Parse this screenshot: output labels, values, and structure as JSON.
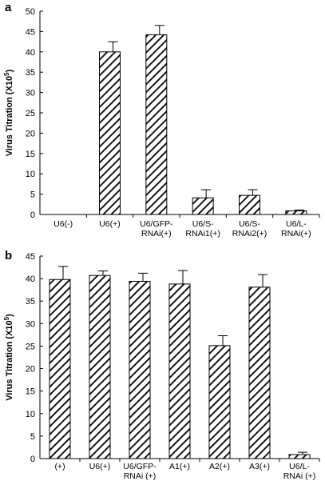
{
  "chart_data": [
    {
      "panel": "a",
      "type": "bar",
      "categories": [
        "U6(-)",
        "U6(+)",
        "U6/GFP-\nRNAi(+)",
        "U6/S-\nRNAi1(+)",
        "U6/S-\nRNAi2(+)",
        "U6/L-\nRNAi(+)"
      ],
      "values": [
        0,
        40,
        44.2,
        4.1,
        4.7,
        0.9
      ],
      "errors": [
        0,
        2.5,
        2.3,
        2.0,
        1.4,
        0.2
      ],
      "ylabel": "Virus Titration (X10^5)",
      "ylim": [
        0,
        50
      ],
      "yticks": [
        0,
        5,
        10,
        15,
        20,
        25,
        30,
        35,
        40,
        45,
        50
      ],
      "bar_fill": "hatched",
      "grid": false
    },
    {
      "panel": "b",
      "type": "bar",
      "categories": [
        "(+)",
        "U6(+)",
        "U6/GFP-\nRNAi (+)",
        "A1(+)",
        "A2(+)",
        "A3(+)",
        "U6/L-\nRNAi (+)"
      ],
      "values": [
        39.8,
        40.7,
        39.4,
        38.8,
        25.1,
        38.1,
        0.9
      ],
      "errors": [
        2.9,
        1.0,
        1.8,
        3.0,
        2.2,
        2.8,
        0.5
      ],
      "ylabel": "Virus Titration (X10^5)",
      "ylim": [
        0,
        45
      ],
      "yticks": [
        0,
        5,
        10,
        15,
        20,
        25,
        30,
        35,
        40,
        45
      ],
      "bar_fill": "hatched",
      "grid": false
    }
  ]
}
